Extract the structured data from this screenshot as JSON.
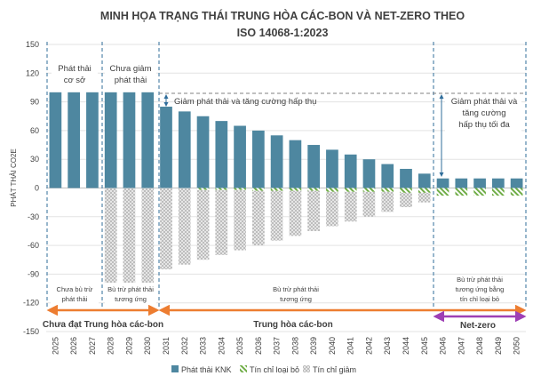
{
  "chart_data": {
    "type": "bar",
    "title_lines": [
      "MINH HỌA TRẠNG THÁI TRUNG HÒA CÁC-BON VÀ NET-ZERO THEO",
      "ISO 14068-1:2023"
    ],
    "ylabel": "PHÁT THẢI CO2E",
    "ylim": [
      -150,
      150
    ],
    "yticks": [
      150,
      120,
      90,
      60,
      30,
      0,
      -30,
      -60,
      -90,
      -120,
      -150
    ],
    "categories": [
      "2025",
      "2026",
      "2027",
      "2028",
      "2029",
      "2030",
      "2031",
      "2032",
      "2033",
      "2034",
      "2035",
      "2036",
      "2037",
      "2038",
      "2039",
      "2040",
      "2041",
      "2042",
      "2043",
      "2044",
      "2045",
      "2046",
      "2047",
      "2048",
      "2049",
      "2050"
    ],
    "series": [
      {
        "name": "Phát thải KNK",
        "color": "#4e87a0",
        "values": [
          100,
          100,
          100,
          100,
          100,
          100,
          85,
          80,
          75,
          70,
          65,
          60,
          55,
          50,
          45,
          40,
          35,
          30,
          25,
          20,
          15,
          10,
          10,
          10,
          10,
          10
        ]
      },
      {
        "name": "Tín chỉ loại bỏ",
        "color": "#70ad47",
        "values": [
          0,
          0,
          0,
          0,
          0,
          0,
          0,
          0,
          -2,
          -2,
          -2,
          -3,
          -3,
          -3,
          -3,
          -4,
          -4,
          -4,
          -4,
          -5,
          -5,
          -8,
          -8,
          -8,
          -8,
          -8
        ]
      },
      {
        "name": "Tín chỉ giảm",
        "color": "#bfbfbf",
        "values": [
          0,
          0,
          0,
          -100,
          -100,
          -100,
          -85,
          -80,
          -73,
          -68,
          -63,
          -57,
          -52,
          -47,
          -42,
          -36,
          -31,
          -26,
          -21,
          -15,
          -10,
          0,
          0,
          0,
          0,
          0
        ]
      }
    ],
    "annotations": {
      "base": "Phát thải\ncơ sở",
      "not_reduced": "Chưa giảm\nphát thải",
      "reduce_enhance": "Giảm phát thải và tăng cường hấp thụ",
      "reduce_max": "Giảm phát thải và\ntăng cường\nhấp thụ tối đa",
      "no_offset": "Chưa bù trừ\nphát thải",
      "offset_equiv_1": "Bù trừ phát thải\ntương ứng",
      "offset_equiv_2": "Bù trừ phát thải\ntương ứng",
      "offset_removal": "Bù trừ phát thải\ntương ứng bằng\ntín chỉ loại bỏ"
    },
    "phases": {
      "not_neutral": "Chưa đạt Trung hòa các-bon",
      "neutral": "Trung hòa các-bon",
      "netzero": "Net-zero"
    },
    "colors": {
      "phase_orange": "#ed7d31",
      "phase_purple": "#9e3fb5",
      "dashed": "#2f6d9a"
    }
  }
}
